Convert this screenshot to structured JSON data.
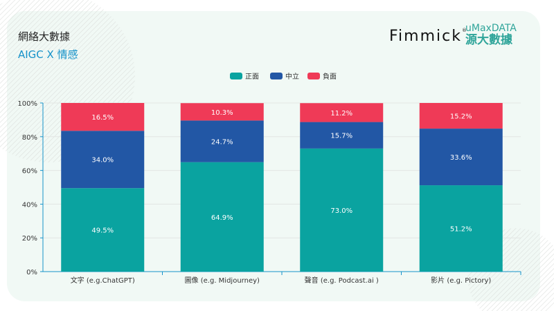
{
  "header": {
    "title": "網絡大數據",
    "subtitle": "AIGC X 情感"
  },
  "logos": {
    "fimmick": "Fimmick",
    "fimmick_mark": "®",
    "umax_top": "uMaxDATA",
    "umax_bottom": "源大數據"
  },
  "colors": {
    "positive": "#0aa3a0",
    "neutral": "#2257a5",
    "negative": "#ef3a57",
    "axis": "#1592c9",
    "accent": "#2fa59a"
  },
  "chart_data": {
    "type": "bar",
    "stacked": true,
    "categories": [
      "文字 (e.g.ChatGPT)",
      "圖像 (e.g. Midjourney)",
      "聲音 (e.g. Podcast.ai )",
      "影片 (e.g. Pictory)"
    ],
    "series": [
      {
        "name": "正面",
        "values": [
          49.5,
          64.9,
          73.0,
          51.2
        ],
        "labels": [
          "49.5%",
          "64.9%",
          "73.0%",
          "51.2%"
        ]
      },
      {
        "name": "中立",
        "values": [
          34.0,
          24.7,
          15.7,
          33.6
        ],
        "labels": [
          "34.0%",
          "24.7%",
          "15.7%",
          "33.6%"
        ]
      },
      {
        "name": "負面",
        "values": [
          16.5,
          10.3,
          11.2,
          15.2
        ],
        "labels": [
          "16.5%",
          "10.3%",
          "11.2%",
          "15.2%"
        ]
      }
    ],
    "yticks": [
      "0%",
      "20%",
      "40%",
      "60%",
      "80%",
      "100%"
    ],
    "ylim": [
      0,
      100
    ],
    "legend": "top-center",
    "grid": true
  }
}
